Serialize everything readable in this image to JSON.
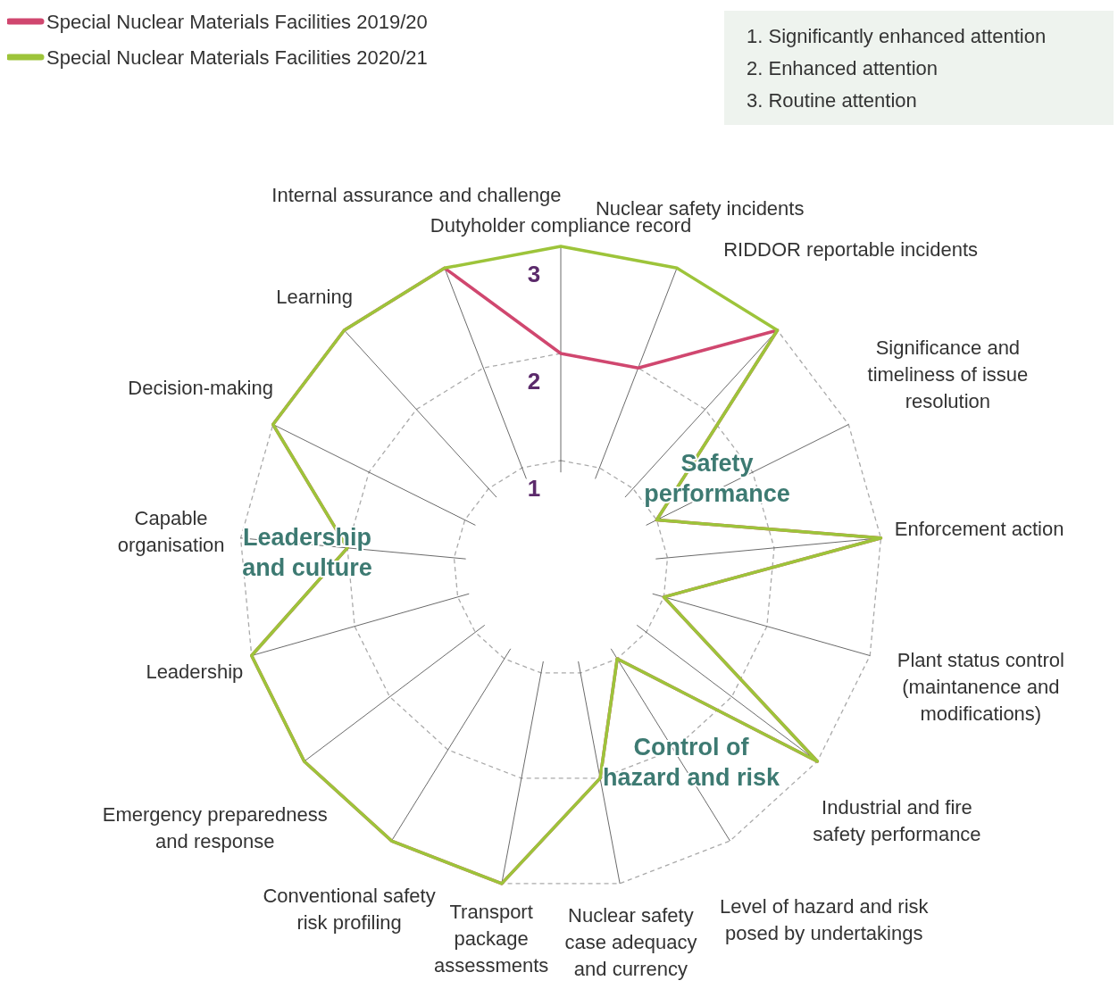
{
  "chart_data": {
    "type": "radar",
    "categories": [
      "Dutyholder compliance record",
      "Nuclear safety incidents",
      "RIDDOR reportable incidents",
      "Significance and timeliness of issue resolution",
      "Enforcement action",
      "Plant status control (maintanence and modifications)",
      "Industrial and fire safety performance",
      "Level of hazard and risk posed by undertakings",
      "Nuclear safety case adequacy and currency",
      "Transport package assessments",
      "Conventional safety risk profiling",
      "Emergency preparedness and response",
      "Leadership",
      "Capable organisation",
      "Decision-making",
      "Learning",
      "Internal assurance and challenge"
    ],
    "series": [
      {
        "name": "Special Nuclear Materials Facilities 2019/20",
        "color": "#d0476f",
        "values": [
          2,
          2,
          3,
          1,
          3,
          1,
          3,
          1,
          2,
          3,
          3,
          3,
          3,
          2,
          3,
          3,
          3
        ]
      },
      {
        "name": "Special Nuclear Materials Facilities 2020/21",
        "color": "#9dc43a",
        "values": [
          3,
          3,
          3,
          1,
          3,
          1,
          3,
          1,
          2,
          3,
          3,
          3,
          3,
          2,
          3,
          3,
          3
        ]
      }
    ],
    "ylim": [
      0,
      3
    ],
    "yticks": [
      1,
      2,
      3
    ],
    "grid": true,
    "legend": "top left",
    "annotations": [
      "1. Significantly enhanced attention",
      "2. Enhanced attention",
      "3. Routine attention",
      "Safety performance",
      "Control of hazard and risk",
      "Leadership and culture"
    ]
  }
}
